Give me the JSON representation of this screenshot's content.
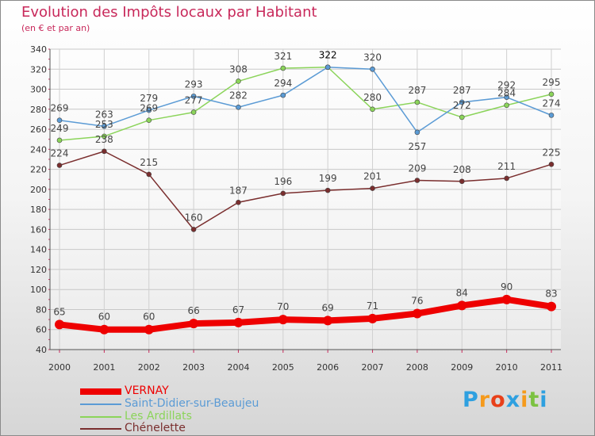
{
  "chart_data": {
    "type": "line",
    "title": "Evolution des Impôts locaux par Habitant",
    "subtitle": "(en € et par an)",
    "xlabel": "",
    "ylabel": "",
    "x": [
      "2000",
      "2001",
      "2002",
      "2003",
      "2004",
      "2005",
      "2006",
      "2007",
      "2008",
      "2009",
      "2010",
      "2011"
    ],
    "ylim": [
      40,
      340
    ],
    "yticks": [
      "40",
      "60",
      "80",
      "100",
      "120",
      "140",
      "160",
      "180",
      "200",
      "220",
      "240",
      "260",
      "280",
      "300",
      "320",
      "340"
    ],
    "grid": true,
    "legend_position": "bottom-left",
    "highlight_label": "322",
    "series": [
      {
        "name": "VERNAY",
        "color": "#ee0000",
        "values": [
          65,
          60,
          60,
          66,
          67,
          70,
          69,
          71,
          76,
          84,
          90,
          83
        ]
      },
      {
        "name": "Saint-Didier-sur-Beaujeu",
        "color": "#5b9bd5",
        "values": [
          269,
          263,
          279,
          293,
          282,
          294,
          322,
          320,
          257,
          287,
          292,
          274
        ]
      },
      {
        "name": "Les Ardillats",
        "color": "#8bd45a",
        "values": [
          249,
          253,
          269,
          277,
          308,
          321,
          322,
          280,
          287,
          272,
          284,
          295
        ]
      },
      {
        "name": "Chénelette",
        "color": "#7a2e2e",
        "values": [
          224,
          238,
          215,
          160,
          187,
          196,
          199,
          201,
          209,
          208,
          211,
          225
        ]
      }
    ]
  },
  "logo": {
    "text": "Proxiti",
    "letters": [
      "P",
      "r",
      "o",
      "x",
      "i",
      "t",
      "i"
    ],
    "colors": [
      "#2ea0e0",
      "#f59a1c",
      "#e8401a",
      "#2ea0e0",
      "#f59a1c",
      "#7cc242",
      "#2ea0e0"
    ]
  }
}
